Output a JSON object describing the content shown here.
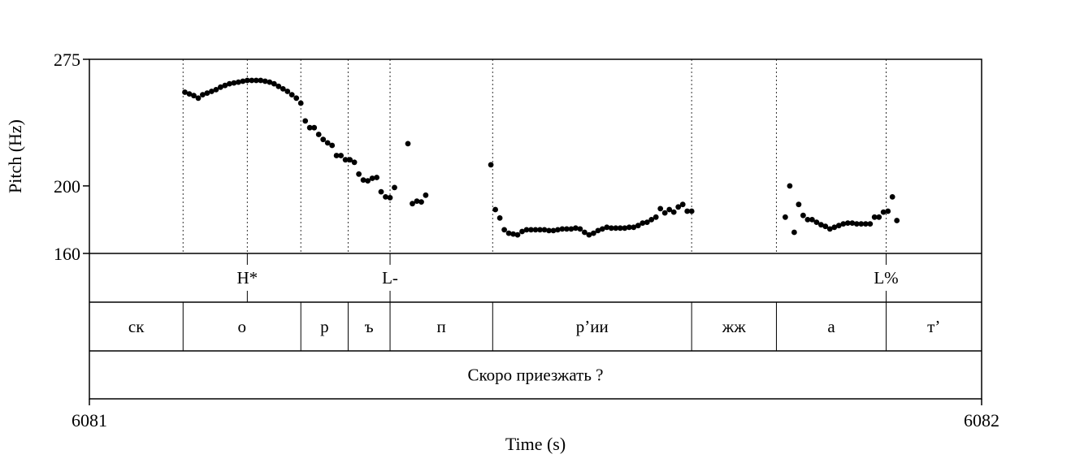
{
  "chart_data": {
    "type": "scatter",
    "xlabel": "Time (s)",
    "ylabel": "Pitch (Hz)",
    "xlim": [
      6081,
      6082
    ],
    "ylim": [
      160,
      275
    ],
    "x_tick_labels": [
      "6081",
      "6082"
    ],
    "y_ticks": [
      160,
      200,
      275
    ],
    "y_tick_labels": [
      "160",
      "200",
      "275"
    ],
    "series": [
      {
        "points": [
          [
            6081.107,
            255.5
          ],
          [
            6081.112,
            254.5
          ],
          [
            6081.117,
            253.5
          ],
          [
            6081.122,
            252.0
          ],
          [
            6081.127,
            254.0
          ],
          [
            6081.132,
            255.0
          ],
          [
            6081.137,
            256.0
          ],
          [
            6081.142,
            257.0
          ],
          [
            6081.147,
            258.5
          ],
          [
            6081.152,
            259.5
          ],
          [
            6081.157,
            260.5
          ],
          [
            6081.162,
            261.0
          ],
          [
            6081.167,
            261.5
          ],
          [
            6081.172,
            262.0
          ],
          [
            6081.177,
            262.5
          ],
          [
            6081.182,
            262.5
          ],
          [
            6081.187,
            262.5
          ],
          [
            6081.192,
            262.5
          ],
          [
            6081.197,
            262.0
          ],
          [
            6081.202,
            261.5
          ],
          [
            6081.207,
            260.5
          ],
          [
            6081.212,
            259.0
          ],
          [
            6081.217,
            257.5
          ],
          [
            6081.222,
            256.0
          ],
          [
            6081.227,
            254.0
          ],
          [
            6081.232,
            252.0
          ],
          [
            6081.237,
            249.0
          ],
          [
            6081.242,
            238.5
          ],
          [
            6081.247,
            234.5
          ],
          [
            6081.252,
            234.5
          ],
          [
            6081.257,
            230.5
          ],
          [
            6081.262,
            227.5
          ],
          [
            6081.267,
            225.5
          ],
          [
            6081.272,
            224.0
          ],
          [
            6081.277,
            218.0
          ],
          [
            6081.282,
            218.0
          ],
          [
            6081.287,
            215.5
          ],
          [
            6081.292,
            215.5
          ],
          [
            6081.297,
            214.0
          ],
          [
            6081.302,
            207.0
          ],
          [
            6081.307,
            203.5
          ],
          [
            6081.312,
            203.0
          ],
          [
            6081.317,
            204.5
          ],
          [
            6081.322,
            205.0
          ],
          [
            6081.327,
            196.5
          ],
          [
            6081.332,
            193.5
          ],
          [
            6081.337,
            193.0
          ],
          [
            6081.342,
            199.0
          ],
          [
            6081.357,
            225.0
          ],
          [
            6081.362,
            189.5
          ],
          [
            6081.367,
            191.0
          ],
          [
            6081.372,
            190.5
          ],
          [
            6081.377,
            194.5
          ],
          [
            6081.45,
            212.5
          ],
          [
            6081.455,
            186.0
          ],
          [
            6081.46,
            181.0
          ],
          [
            6081.465,
            174.0
          ],
          [
            6081.47,
            172.0
          ],
          [
            6081.475,
            171.5
          ],
          [
            6081.48,
            171.0
          ],
          [
            6081.485,
            173.0
          ],
          [
            6081.49,
            174.0
          ],
          [
            6081.495,
            174.0
          ],
          [
            6081.5,
            174.0
          ],
          [
            6081.505,
            174.0
          ],
          [
            6081.51,
            174.0
          ],
          [
            6081.515,
            173.5
          ],
          [
            6081.52,
            173.5
          ],
          [
            6081.525,
            174.0
          ],
          [
            6081.53,
            174.5
          ],
          [
            6081.535,
            174.5
          ],
          [
            6081.54,
            174.5
          ],
          [
            6081.545,
            175.0
          ],
          [
            6081.55,
            174.5
          ],
          [
            6081.555,
            172.5
          ],
          [
            6081.56,
            171.0
          ],
          [
            6081.565,
            172.0
          ],
          [
            6081.57,
            173.5
          ],
          [
            6081.575,
            174.5
          ],
          [
            6081.58,
            175.5
          ],
          [
            6081.585,
            175.0
          ],
          [
            6081.59,
            175.0
          ],
          [
            6081.595,
            175.0
          ],
          [
            6081.6,
            175.0
          ],
          [
            6081.605,
            175.5
          ],
          [
            6081.61,
            175.5
          ],
          [
            6081.615,
            176.5
          ],
          [
            6081.62,
            178.0
          ],
          [
            6081.625,
            178.5
          ],
          [
            6081.63,
            180.0
          ],
          [
            6081.635,
            181.5
          ],
          [
            6081.64,
            186.5
          ],
          [
            6081.645,
            184.0
          ],
          [
            6081.65,
            186.0
          ],
          [
            6081.655,
            184.5
          ],
          [
            6081.66,
            187.5
          ],
          [
            6081.665,
            189.0
          ],
          [
            6081.67,
            185.0
          ],
          [
            6081.675,
            185.0
          ],
          [
            6081.78,
            181.5
          ],
          [
            6081.785,
            200.0
          ],
          [
            6081.79,
            172.5
          ],
          [
            6081.795,
            189.0
          ],
          [
            6081.8,
            182.5
          ],
          [
            6081.805,
            180.0
          ],
          [
            6081.81,
            180.0
          ],
          [
            6081.815,
            178.5
          ],
          [
            6081.82,
            177.0
          ],
          [
            6081.825,
            176.0
          ],
          [
            6081.83,
            174.5
          ],
          [
            6081.835,
            175.5
          ],
          [
            6081.84,
            176.5
          ],
          [
            6081.845,
            177.5
          ],
          [
            6081.85,
            178.0
          ],
          [
            6081.855,
            178.0
          ],
          [
            6081.86,
            177.5
          ],
          [
            6081.865,
            177.5
          ],
          [
            6081.87,
            177.5
          ],
          [
            6081.875,
            177.5
          ],
          [
            6081.88,
            181.5
          ],
          [
            6081.885,
            181.5
          ],
          [
            6081.89,
            184.5
          ],
          [
            6081.895,
            185.0
          ],
          [
            6081.9,
            193.5
          ],
          [
            6081.905,
            179.5
          ]
        ]
      }
    ],
    "boundaries": [
      6081.105,
      6081.237,
      6081.29,
      6081.337,
      6081.452,
      6081.675,
      6081.77,
      6081.893
    ],
    "tone_tier": [
      {
        "label": "H*",
        "x": 6081.177
      },
      {
        "label": "L-",
        "x": 6081.337
      },
      {
        "label": "L%",
        "x": 6081.893
      }
    ],
    "segment_tier": [
      {
        "label": "ск",
        "start": 6081.0,
        "end": 6081.105
      },
      {
        "label": "о",
        "start": 6081.105,
        "end": 6081.237
      },
      {
        "label": "р",
        "start": 6081.237,
        "end": 6081.29
      },
      {
        "label": "ъ",
        "start": 6081.29,
        "end": 6081.337
      },
      {
        "label": "п",
        "start": 6081.337,
        "end": 6081.452
      },
      {
        "label": "р’ии",
        "start": 6081.452,
        "end": 6081.675
      },
      {
        "label": "жж",
        "start": 6081.675,
        "end": 6081.77
      },
      {
        "label": "а",
        "start": 6081.77,
        "end": 6081.893
      },
      {
        "label": "т’",
        "start": 6081.893,
        "end": 6082.0
      }
    ],
    "sentence_tier": {
      "label": "Скоро приезжать ?",
      "start": 6081.0,
      "end": 6082.0
    }
  }
}
